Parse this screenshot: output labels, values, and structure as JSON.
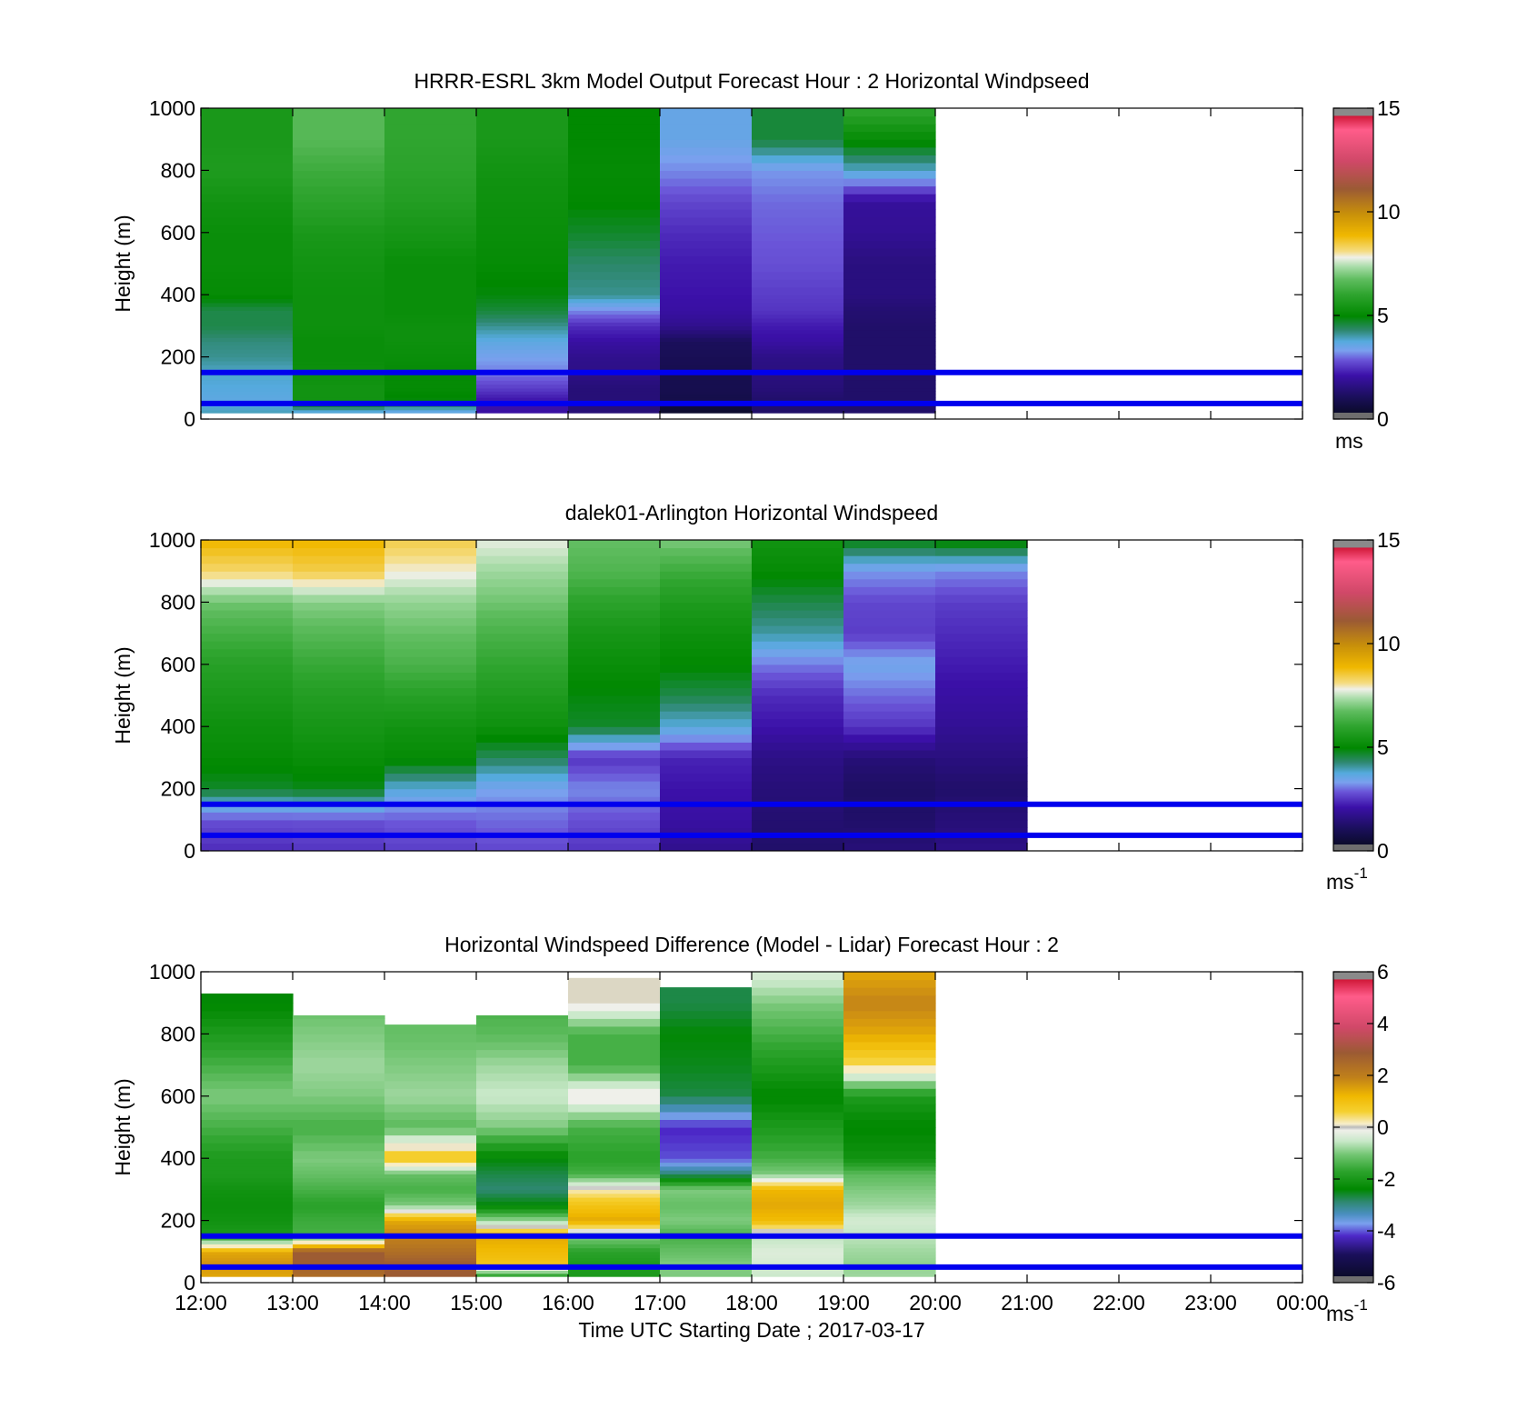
{
  "figure": {
    "xlabel": "Time UTC  Starting Date ; 2017-03-17",
    "xticks": [
      "12:00",
      "13:00",
      "14:00",
      "15:00",
      "16:00",
      "17:00",
      "18:00",
      "19:00",
      "20:00",
      "21:00",
      "22:00",
      "23:00",
      "00:00"
    ],
    "reference_heights_m": [
      150,
      50
    ],
    "reference_line_color": "#0000ee"
  },
  "chart_data": [
    {
      "type": "heatmap",
      "title": "HRRR-ESRL 3km Model Output   Forecast Hour : 2 Horizontal Windpseed",
      "xlabel": "",
      "ylabel": "Height (m)",
      "xlim_hours": [
        12,
        24
      ],
      "ylim": [
        0,
        1000
      ],
      "yticks": [
        "0",
        "200",
        "400",
        "600",
        "800",
        "1000"
      ],
      "colorbar": {
        "range": [
          0,
          15
        ],
        "ticks": [
          "0",
          "5",
          "10",
          "15"
        ],
        "unit": "ms",
        "unit_sup": "",
        "palette": "speed"
      },
      "data_x_hours": [
        12,
        13,
        14,
        15,
        16,
        17,
        18,
        19
      ],
      "data_y_m": [
        20,
        60,
        100,
        150,
        200,
        250,
        300,
        350,
        400,
        500,
        600,
        700,
        800,
        900,
        1000
      ],
      "values": [
        [
          3.8,
          3.5,
          3.6,
          3.7,
          4.0,
          4.1,
          4.4,
          4.4,
          5.0,
          5.1,
          5.1,
          5.3,
          5.6,
          5.5,
          5.5
        ],
        [
          3.4,
          5.3,
          5.3,
          5.2,
          5.1,
          5.1,
          5.2,
          5.2,
          5.2,
          5.3,
          5.5,
          5.9,
          6.2,
          6.6,
          6.6
        ],
        [
          3.3,
          4.8,
          5.0,
          5.0,
          5.1,
          5.2,
          5.2,
          5.1,
          5.1,
          5.1,
          5.4,
          5.7,
          5.9,
          6.0,
          6.0
        ],
        [
          1.8,
          1.9,
          2.4,
          2.9,
          3.2,
          3.5,
          4.0,
          4.5,
          4.8,
          5.0,
          5.1,
          5.2,
          5.3,
          5.5,
          5.5
        ],
        [
          1.2,
          1.2,
          1.2,
          1.4,
          1.5,
          1.8,
          2.2,
          3.0,
          4.0,
          4.2,
          4.6,
          4.9,
          5.0,
          4.9,
          4.9
        ],
        [
          0.0,
          0.5,
          0.6,
          0.6,
          0.7,
          0.8,
          1.5,
          1.8,
          1.9,
          2.0,
          2.2,
          2.5,
          3.0,
          3.4,
          3.4
        ],
        [
          1.0,
          1.0,
          1.2,
          1.3,
          1.4,
          1.8,
          2.0,
          2.3,
          2.4,
          2.6,
          2.7,
          2.8,
          3.1,
          4.5,
          4.5
        ],
        [
          1.0,
          1.0,
          1.0,
          1.0,
          1.0,
          1.0,
          1.0,
          1.1,
          1.3,
          1.3,
          1.6,
          1.7,
          3.7,
          5.0,
          6.0
        ]
      ]
    },
    {
      "type": "heatmap",
      "title": "dalek01-Arlington  Horizontal Windspeed",
      "xlabel": "",
      "ylabel": "Height (m)",
      "xlim_hours": [
        12,
        24
      ],
      "ylim": [
        0,
        1000
      ],
      "yticks": [
        "0",
        "200",
        "400",
        "600",
        "800",
        "1000"
      ],
      "colorbar": {
        "range": [
          0,
          15
        ],
        "ticks": [
          "0",
          "5",
          "10",
          "15"
        ],
        "unit": "ms",
        "unit_sup": "-1",
        "palette": "speed"
      },
      "data_x_hours": [
        12,
        13,
        14,
        15,
        16,
        17,
        18,
        19,
        20
      ],
      "data_y_m": [
        0,
        100,
        200,
        300,
        400,
        500,
        600,
        700,
        800,
        900,
        1000
      ],
      "values": [
        [
          2.2,
          2.6,
          4.6,
          5.0,
          5.2,
          5.5,
          5.8,
          6.3,
          6.9,
          8.3,
          9.0
        ],
        [
          2.3,
          2.6,
          4.7,
          5.1,
          5.4,
          5.7,
          6.1,
          6.6,
          7.1,
          8.5,
          9.0
        ],
        [
          2.4,
          2.7,
          3.6,
          5.0,
          5.3,
          5.8,
          6.4,
          6.8,
          7.2,
          7.9,
          8.5
        ],
        [
          2.5,
          2.8,
          3.2,
          4.3,
          5.2,
          5.6,
          6.0,
          6.4,
          6.9,
          7.3,
          7.8
        ],
        [
          2.3,
          2.6,
          3.0,
          2.3,
          4.6,
          4.8,
          5.1,
          5.4,
          5.9,
          6.5,
          6.8
        ],
        [
          1.5,
          1.8,
          1.9,
          2.1,
          3.6,
          4.4,
          4.9,
          5.2,
          5.6,
          6.2,
          7.0
        ],
        [
          1.0,
          1.1,
          1.2,
          1.4,
          1.9,
          2.2,
          2.9,
          3.9,
          4.4,
          5.0,
          5.3
        ],
        [
          1.2,
          1.0,
          0.9,
          1.2,
          2.3,
          2.8,
          3.3,
          2.4,
          2.5,
          3.1,
          4.8
        ],
        [
          1.4,
          1.2,
          1.0,
          1.3,
          1.6,
          1.8,
          2.0,
          2.2,
          2.4,
          3.0,
          5.0
        ]
      ]
    },
    {
      "type": "heatmap",
      "title": "Horizontal Windspeed Difference (Model - Lidar) Forecast Hour : 2",
      "xlabel": "Time UTC  Starting Date ; 2017-03-17",
      "ylabel": "Height (m)",
      "xlim_hours": [
        12,
        24
      ],
      "ylim": [
        0,
        1000
      ],
      "yticks": [
        "0",
        "200",
        "400",
        "600",
        "800",
        "1000"
      ],
      "colorbar": {
        "range": [
          -6,
          6
        ],
        "ticks": [
          "-6",
          "-4",
          "-2",
          "0",
          "2",
          "4",
          "6"
        ],
        "unit": "ms",
        "unit_sup": "-1",
        "palette": "diff"
      },
      "data_x_hours": [
        12,
        13,
        14,
        15,
        16,
        17,
        18,
        19
      ],
      "data_y_m": [
        20,
        60,
        100,
        150,
        200,
        250,
        300,
        350,
        400,
        500,
        600,
        700,
        800,
        900,
        1000
      ],
      "data_top_m": [
        930,
        860,
        830,
        860,
        980,
        950,
        1000,
        1000
      ],
      "values": [
        [
          1.5,
          1.8,
          1.5,
          -2.0,
          -2.2,
          -2.3,
          -2.2,
          -2.0,
          -2.0,
          -1.5,
          -1.0,
          -1.5,
          -2.0,
          -2.5,
          -2.5
        ],
        [
          2.5,
          3.0,
          3.0,
          -1.5,
          -1.6,
          -1.8,
          -1.5,
          -1.2,
          -1.0,
          -1.5,
          -1.0,
          -0.8,
          -1.0,
          -1.2,
          -1.2
        ],
        [
          3.0,
          3.0,
          2.5,
          2.0,
          1.5,
          -1.0,
          -1.5,
          -1.2,
          1.0,
          -1.3,
          -0.8,
          -1.0,
          -1.2,
          -1.2,
          -1.2
        ],
        [
          -2.0,
          1.0,
          1.2,
          1.5,
          -0.8,
          -2.5,
          -3.0,
          -2.8,
          -2.5,
          -1.0,
          -0.5,
          -0.8,
          -1.3,
          -1.5,
          -1.5
        ],
        [
          -2.0,
          -2.0,
          -1.8,
          -1.0,
          1.5,
          1.0,
          0.2,
          -1.5,
          -1.8,
          -1.5,
          0.1,
          -1.5,
          -1.5,
          0.1,
          0.1
        ],
        [
          -1.0,
          -1.0,
          -1.2,
          -1.5,
          -1.0,
          -1.2,
          -1.0,
          -3.0,
          -4.2,
          -4.4,
          -2.8,
          -2.6,
          -2.5,
          -2.8,
          -2.8
        ],
        [
          -0.5,
          -0.4,
          -0.3,
          -0.6,
          1.2,
          1.5,
          1.3,
          -1.0,
          -1.5,
          -2.0,
          -2.5,
          -2.0,
          -1.5,
          -1.0,
          -0.3
        ],
        [
          -0.8,
          -0.9,
          -0.8,
          -0.6,
          -0.4,
          -0.8,
          -1.0,
          -1.3,
          -2.2,
          -2.5,
          -2.0,
          0.5,
          1.5,
          2.0,
          1.5
        ]
      ]
    }
  ]
}
